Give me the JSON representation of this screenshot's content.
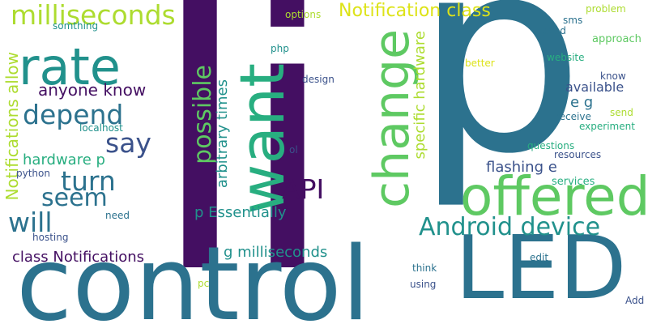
{
  "palette": {
    "purple": "#440f62",
    "navy": "#3b528b",
    "teal": "#2c728e",
    "cyan": "#21918c",
    "green": "#28ae80",
    "lightgreen": "#5ec962",
    "lime": "#addc30",
    "yellow": "#dde318",
    "background": "#ffffff"
  },
  "words": {
    "li": "li",
    "p": "p",
    "control": "control",
    "led": "LED",
    "want": "want",
    "offered": "offered",
    "change": "change",
    "rate": "rate",
    "milliseconds": "milliseconds",
    "android_device": "Android device",
    "notification_class": "Notification class",
    "depend": "depend",
    "anyone_know": "anyone know",
    "possible": "possible",
    "say": "say",
    "turn": "turn",
    "seem": "seem",
    "will": "will",
    "api": "API",
    "notifications_allow": "Notifications allow",
    "arbitrary_times": "arbitrary times",
    "specific_hardware": "specific hardware",
    "hardware_p": "hardware p",
    "p_essentially": "p Essentially",
    "class_notifications": "class Notifications",
    "g_milliseconds": "g milliseconds",
    "flashing_e": "flashing e",
    "available": "available",
    "e_g": "e g",
    "somthing": "somthing",
    "options": "options",
    "sms": "sms",
    "problem": "problem",
    "good": "good",
    "approach": "approach",
    "php": "php",
    "website": "website",
    "better": "better",
    "design": "design",
    "know": "know",
    "send": "send",
    "receive": "receive",
    "experiment": "experiment",
    "localhost": "localhost",
    "ol": "ol",
    "questions": "questions",
    "resources": "resources",
    "python": "python",
    "services": "services",
    "need": "need",
    "hosting": "hosting",
    "edit": "edit",
    "think": "think",
    "pc": "pc",
    "using": "using",
    "add": "Add"
  }
}
